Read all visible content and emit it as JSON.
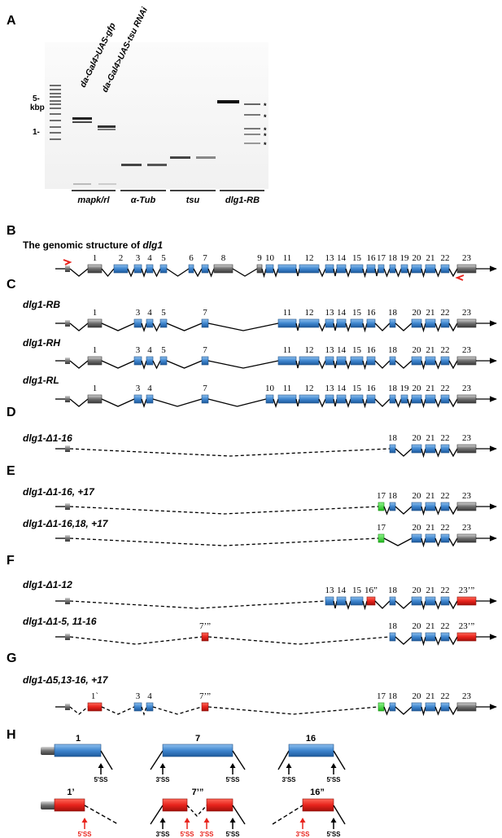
{
  "panels": {
    "A": "A",
    "B": "B",
    "C": "C",
    "D": "D",
    "E": "E",
    "F": "F",
    "G": "G",
    "H": "H"
  },
  "gel": {
    "ladder_labels": [
      "5-",
      "kbp",
      "1-"
    ],
    "lane_labels": [
      "da-Gal4>UAS-gfp",
      "da-Gal4>UAS-tsu RNAi"
    ],
    "group_labels": [
      "mapk/rl",
      "α-Tub",
      "tsu",
      "dlg1-RB"
    ],
    "stars": [
      "*",
      "*",
      "*",
      "*",
      "*"
    ]
  },
  "genomic": {
    "title": "The genomic structure of ",
    "gene": "dlg1",
    "exons": [
      "1",
      "2",
      "3",
      "4",
      "5",
      "6",
      "7",
      "8",
      "9",
      "10",
      "11",
      "12",
      "13",
      "14",
      "15",
      "16",
      "17",
      "18",
      "19",
      "20",
      "21",
      "22",
      "23"
    ]
  },
  "isoforms": [
    {
      "name": "dlg1-RB",
      "exons": [
        "1",
        "3",
        "4",
        "5",
        "7",
        "11",
        "12",
        "13",
        "14",
        "15",
        "16",
        "18",
        "20",
        "21",
        "22",
        "23"
      ]
    },
    {
      "name": "dlg1-RH",
      "exons": [
        "1",
        "3",
        "4",
        "5",
        "7",
        "11",
        "12",
        "13",
        "14",
        "15",
        "16",
        "18",
        "20",
        "21",
        "22",
        "23"
      ]
    },
    {
      "name": "dlg1-RL",
      "exons": [
        "1",
        "3",
        "4",
        "7",
        "10",
        "11",
        "12",
        "13",
        "14",
        "15",
        "16",
        "18",
        "19",
        "20",
        "21",
        "22",
        "23"
      ]
    }
  ],
  "deletions": [
    {
      "name": "dlg1-Δ1-16",
      "exons": [
        "18",
        "20",
        "21",
        "22",
        "23"
      ]
    },
    {
      "name": "dlg1-Δ1-16, +17",
      "exons": [
        "17",
        "18",
        "20",
        "21",
        "22",
        "23"
      ]
    },
    {
      "name": "dlg1-Δ1-16,18, +17",
      "exons": [
        "17",
        "20",
        "21",
        "22",
        "23"
      ]
    },
    {
      "name": "dlg1-Δ1-12",
      "exons": [
        "13",
        "14",
        "15",
        "16”",
        "18",
        "20",
        "21",
        "22",
        "23’”"
      ]
    },
    {
      "name": "dlg1-Δ1-5, 11-16",
      "exons": [
        "7’”",
        "18",
        "20",
        "21",
        "22",
        "23’”"
      ]
    },
    {
      "name": "dlg1-Δ5,13-16, +17",
      "exons": [
        "1`",
        "3",
        "4",
        "7’”",
        "17",
        "18",
        "20",
        "21",
        "22",
        "23"
      ]
    }
  ],
  "splice": {
    "top_labels": [
      "1",
      "7",
      "16"
    ],
    "bottom_labels": [
      "1’",
      "7’”",
      "16”"
    ],
    "ss5": "5'SS",
    "ss3": "3'SS",
    "colors": {
      "blue": "#4a8fd0",
      "red": "#e8231c",
      "green": "#2fd12a",
      "gray": "#6b6b6b"
    }
  }
}
